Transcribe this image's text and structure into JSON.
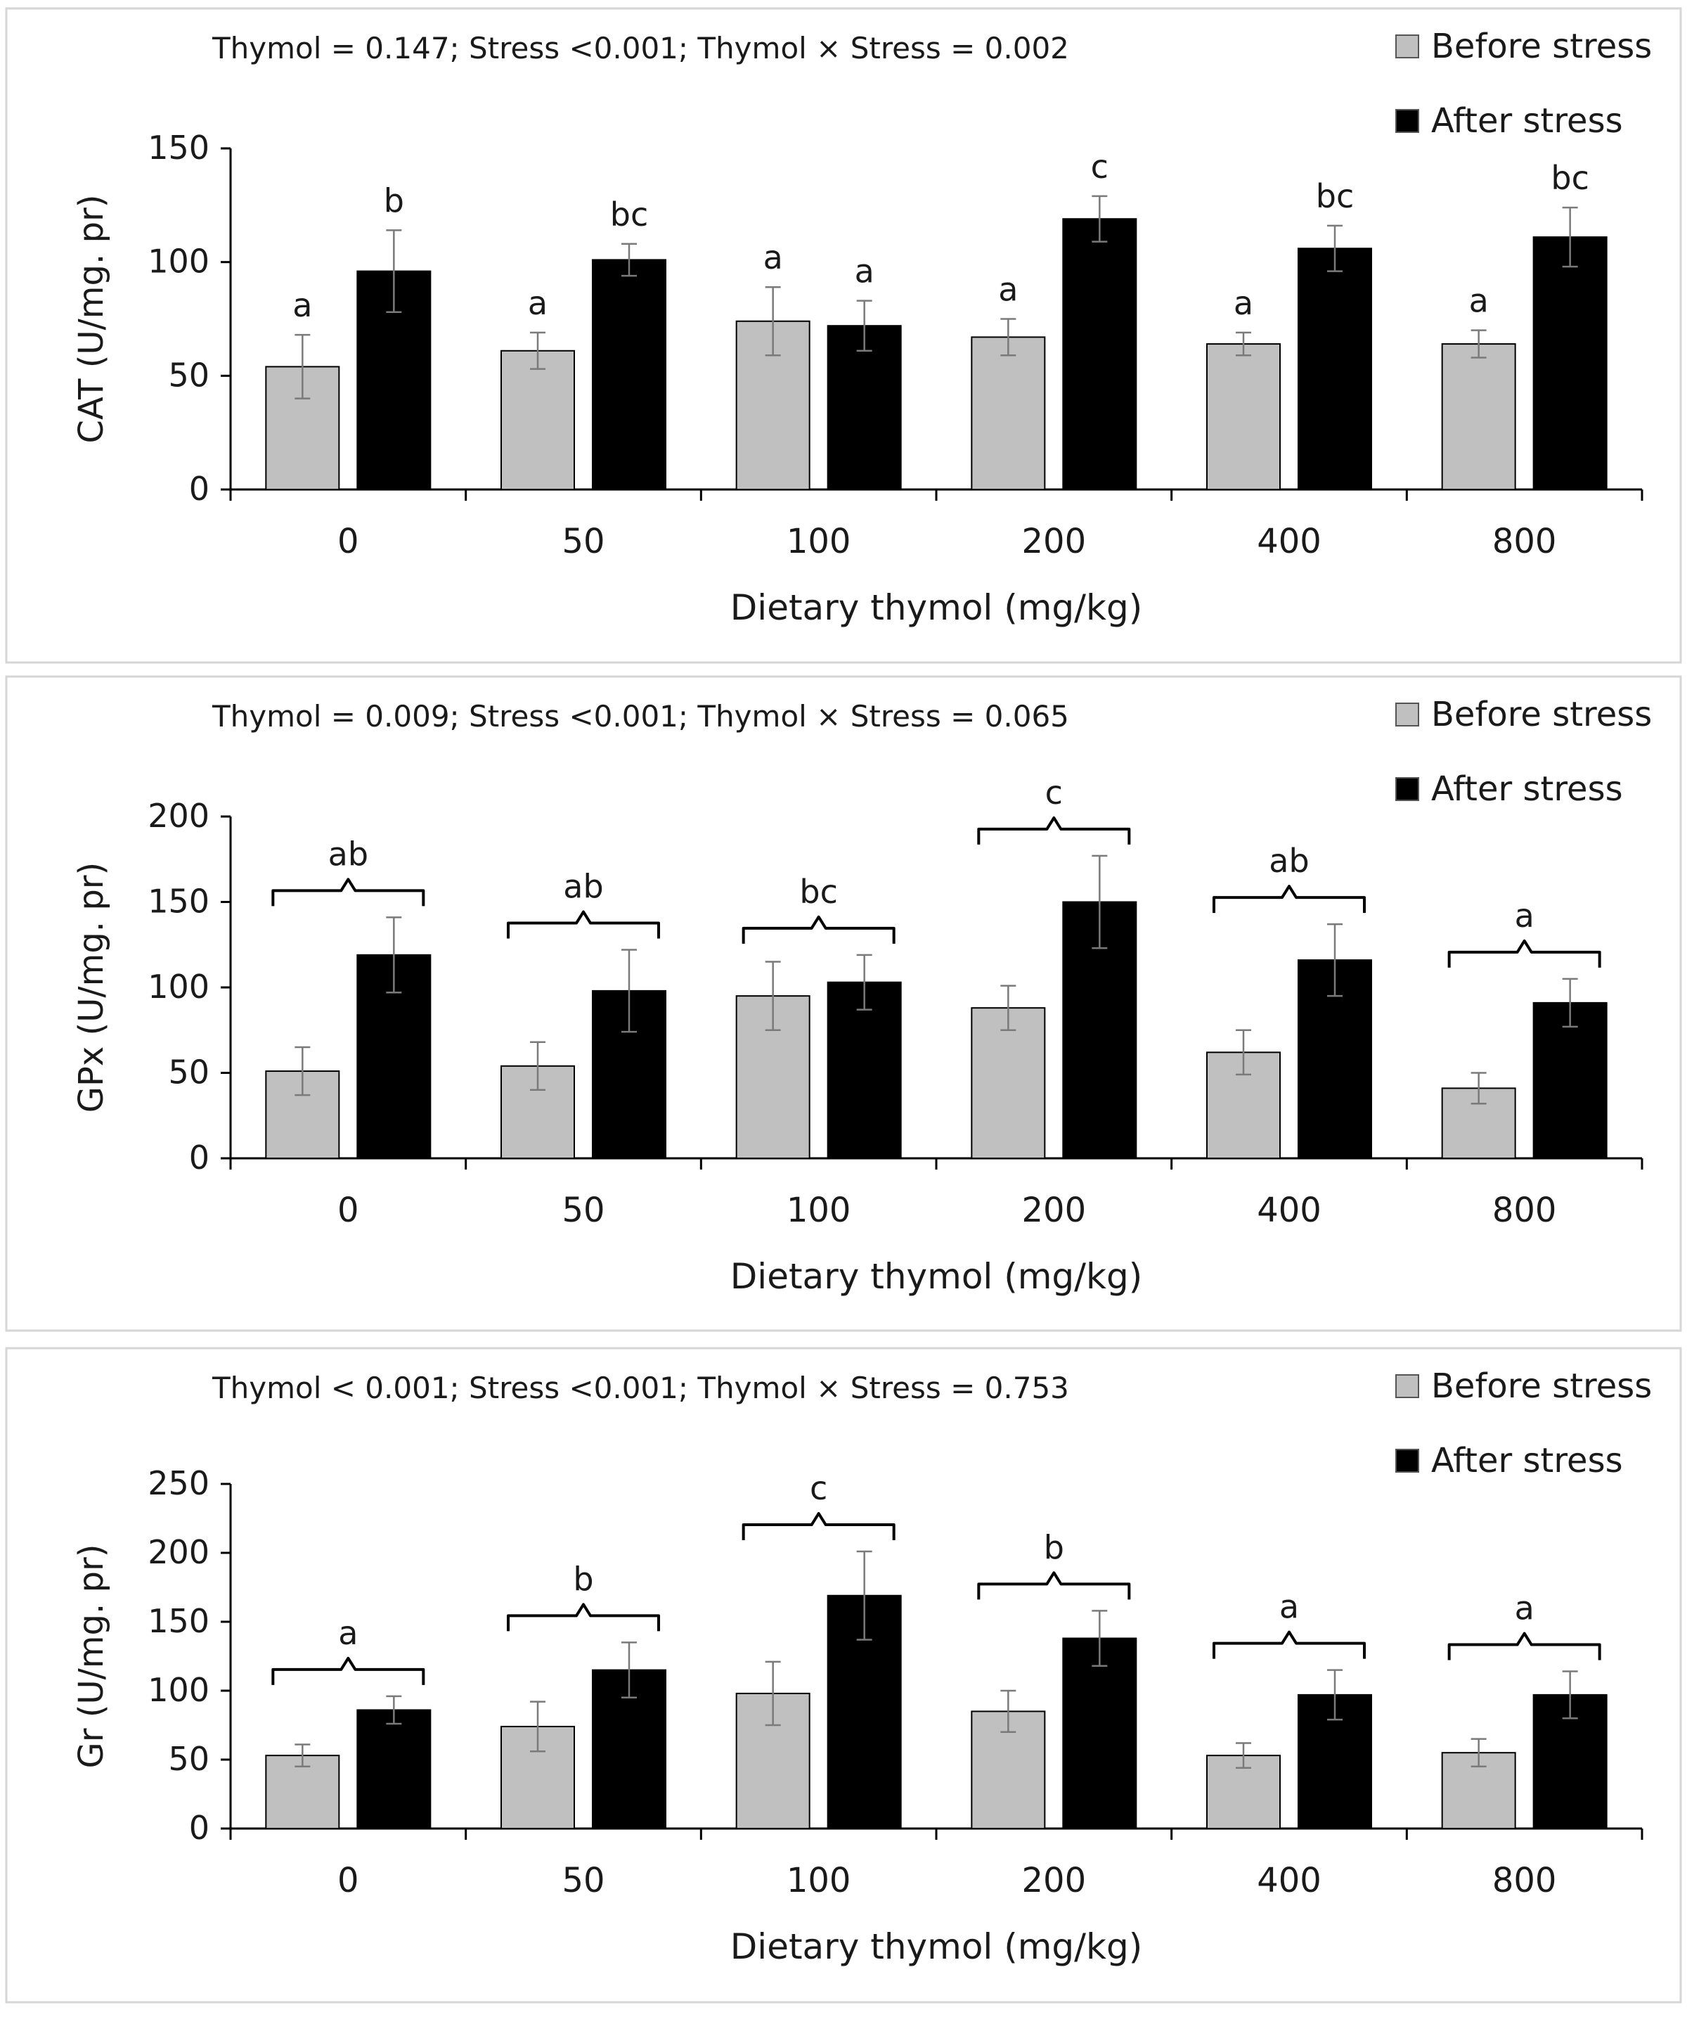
{
  "chart_data": [
    {
      "type": "bar",
      "stats_text": "Thymol = 0.147; Stress <0.001; Thymol × Stress = 0.002",
      "ylabel": "CAT (U/mg. pr)",
      "xlabel": "Dietary thymol (mg/kg)",
      "ylim": [
        0,
        150
      ],
      "yticks": [
        0,
        50,
        100,
        150
      ],
      "categories": [
        "0",
        "50",
        "100",
        "200",
        "400",
        "800"
      ],
      "legend_position": "top-right",
      "bracket_groups": false,
      "series": [
        {
          "name": "Before stress",
          "color": "#c0c0c0",
          "values": [
            54,
            61,
            74,
            67,
            64,
            64
          ],
          "errors": [
            14,
            8,
            15,
            8,
            5,
            6
          ],
          "letters": [
            "a",
            "a",
            "a",
            "a",
            "a",
            "a"
          ]
        },
        {
          "name": "After stress",
          "color": "#000000",
          "values": [
            96,
            101,
            72,
            119,
            106,
            111
          ],
          "errors": [
            18,
            7,
            11,
            10,
            10,
            13
          ],
          "letters": [
            "b",
            "bc",
            "a",
            "c",
            "bc",
            "bc"
          ]
        }
      ]
    },
    {
      "type": "bar",
      "stats_text": "Thymol = 0.009; Stress <0.001; Thymol × Stress = 0.065",
      "ylabel": "GPx (U/mg. pr)",
      "xlabel": "Dietary thymol (mg/kg)",
      "ylim": [
        0,
        200
      ],
      "yticks": [
        0,
        50,
        100,
        150,
        200
      ],
      "categories": [
        "0",
        "50",
        "100",
        "200",
        "400",
        "800"
      ],
      "legend_position": "top-right",
      "bracket_groups": true,
      "group_letters": [
        "ab",
        "ab",
        "bc",
        "c",
        "ab",
        "a"
      ],
      "series": [
        {
          "name": "Before stress",
          "color": "#c0c0c0",
          "values": [
            51,
            54,
            95,
            88,
            62,
            41
          ],
          "errors": [
            14,
            14,
            20,
            13,
            13,
            9
          ]
        },
        {
          "name": "After stress",
          "color": "#000000",
          "values": [
            119,
            98,
            103,
            150,
            116,
            91
          ],
          "errors": [
            22,
            24,
            16,
            27,
            21,
            14
          ]
        }
      ]
    },
    {
      "type": "bar",
      "stats_text": "Thymol < 0.001; Stress <0.001; Thymol × Stress = 0.753",
      "ylabel": "Gr (U/mg. pr)",
      "xlabel": "Dietary thymol (mg/kg)",
      "ylim": [
        0,
        250
      ],
      "yticks": [
        0,
        50,
        100,
        150,
        200,
        250
      ],
      "categories": [
        "0",
        "50",
        "100",
        "200",
        "400",
        "800"
      ],
      "legend_position": "top-right",
      "bracket_groups": true,
      "group_letters": [
        "a",
        "b",
        "c",
        "b",
        "a",
        "a"
      ],
      "series": [
        {
          "name": "Before stress",
          "color": "#c0c0c0",
          "values": [
            53,
            74,
            98,
            85,
            53,
            55
          ],
          "errors": [
            8,
            18,
            23,
            15,
            9,
            10
          ]
        },
        {
          "name": "After stress",
          "color": "#000000",
          "values": [
            86,
            115,
            169,
            138,
            97,
            97
          ],
          "errors": [
            10,
            20,
            32,
            20,
            18,
            17
          ]
        }
      ]
    }
  ]
}
